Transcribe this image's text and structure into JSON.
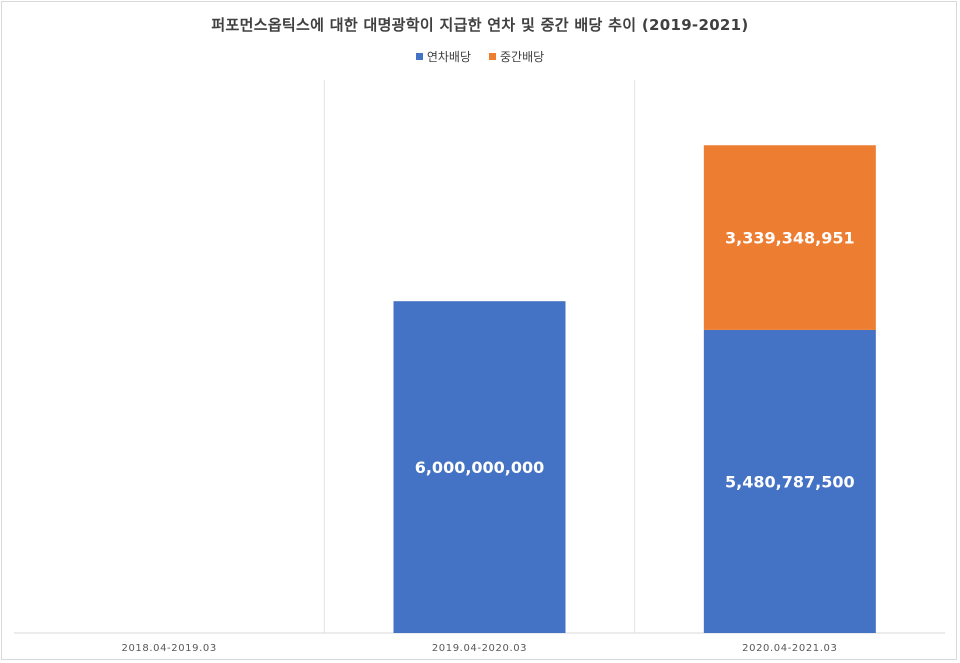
{
  "chart_data": {
    "type": "bar",
    "stacked": true,
    "title": "퍼포먼스옵틱스에 대한 대명광학이 지급한 연차 및 중간 배당 추이 (2019-2021)",
    "categories": [
      "2018.04-2019.03",
      "2019.04-2020.03",
      "2020.04-2021.03"
    ],
    "series": [
      {
        "name": "연차배당",
        "color": "#4472C4",
        "values": [
          0,
          6000000000,
          5480787500
        ],
        "labels": [
          "",
          "6,000,000,000",
          "5,480,787,500"
        ]
      },
      {
        "name": "중간배당",
        "color": "#ED7D31",
        "values": [
          0,
          0,
          3339348951
        ],
        "labels": [
          "",
          "",
          "3,339,348,951"
        ]
      }
    ],
    "ylim": [
      0,
      10000000000
    ],
    "legend_position": "top",
    "grid": false
  }
}
